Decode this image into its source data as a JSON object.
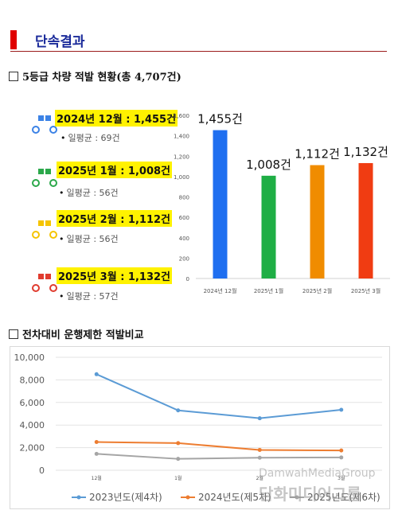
{
  "header": {
    "title": "단속결과"
  },
  "section1": {
    "title": "5등급 차량 적발 현황(총 4,707건)"
  },
  "section2": {
    "title": "전차대비 운행제한 적발비교"
  },
  "monthly_items": [
    {
      "label": "2024년 12월 : 1,455건",
      "avg": "일평균 : 69건",
      "color": "#3b82e6",
      "icon": "car-icon"
    },
    {
      "label": "2025년 1월 : 1,008건",
      "avg": "일평균 : 56건",
      "color": "#2ba84a",
      "icon": "car-icon"
    },
    {
      "label": "2025년 2월 : 1,112건",
      "avg": "일평균 : 56건",
      "color": "#f5c400",
      "icon": "car-icon"
    },
    {
      "label": "2025년 3월 : 1,132건",
      "avg": "일평균 : 57건",
      "color": "#e03b2e",
      "icon": "car-icon"
    }
  ],
  "chart_data": [
    {
      "type": "bar",
      "categories": [
        "2024년 12월",
        "2025년 1월",
        "2025년 2월",
        "2025년 3월"
      ],
      "values": [
        1455,
        1008,
        1112,
        1132
      ],
      "data_labels": [
        "1,455건",
        "1,008건",
        "1,112건",
        "1,132건"
      ],
      "colors": [
        "#1f6ff0",
        "#1fae45",
        "#f08c00",
        "#f03c12"
      ],
      "ylim": [
        0,
        1600
      ],
      "yticks": [
        0,
        200,
        400,
        600,
        800,
        1000,
        1200,
        1400,
        1600
      ],
      "ytick_labels": [
        "0",
        "200",
        "400",
        "600",
        "800",
        "1,000",
        "1,200",
        "1,400",
        "1,600"
      ],
      "grid": false
    },
    {
      "type": "line",
      "categories": [
        "12월",
        "1월",
        "2월",
        "3월"
      ],
      "series": [
        {
          "name": "2023년도(제4차)",
          "values": [
            8500,
            5300,
            4600,
            5350
          ],
          "color": "#5b9bd5"
        },
        {
          "name": "2024년도(제5차)",
          "values": [
            2500,
            2400,
            1800,
            1750
          ],
          "color": "#ed7d31"
        },
        {
          "name": "2025년도(제6차)",
          "values": [
            1455,
            1008,
            1112,
            1132
          ],
          "color": "#a5a5a5"
        }
      ],
      "ylim": [
        0,
        10000
      ],
      "yticks": [
        0,
        2000,
        4000,
        6000,
        8000,
        10000
      ],
      "ytick_labels": [
        "0",
        "2,000",
        "4,000",
        "6,000",
        "8,000",
        "10,000"
      ],
      "grid": true,
      "legend": "bottom"
    }
  ],
  "watermark": {
    "line1": "DamwahMediaGroup",
    "line2": "담화미디어그룹"
  }
}
